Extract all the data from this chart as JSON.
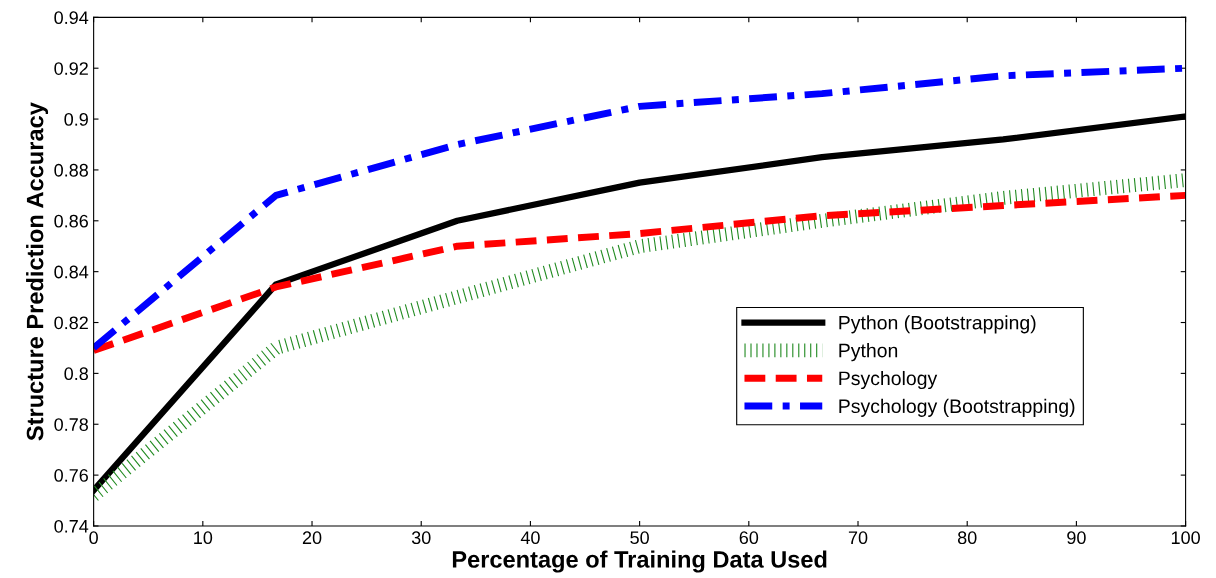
{
  "chart_data": {
    "type": "line",
    "xlabel": "Percentage of Training Data Used",
    "ylabel": "Structure Prediction Accuracy",
    "x": [
      0,
      16.7,
      33.3,
      50,
      66.7,
      83.3,
      100
    ],
    "series": [
      {
        "name": "Python (Bootstrapping)",
        "color": "#000000",
        "line_style": "solid",
        "values": [
          0.754,
          0.835,
          0.86,
          0.875,
          0.885,
          0.892,
          0.901
        ]
      },
      {
        "name": "Python",
        "color": "#228b22",
        "line_style": "dotted",
        "values": [
          0.752,
          0.81,
          0.83,
          0.85,
          0.86,
          0.869,
          0.876
        ]
      },
      {
        "name": "Psychology",
        "color": "#ff0000",
        "line_style": "dashed",
        "values": [
          0.809,
          0.834,
          0.85,
          0.855,
          0.862,
          0.866,
          0.87
        ]
      },
      {
        "name": "Psychology (Bootstrapping)",
        "color": "#0000ff",
        "line_style": "dashdot",
        "values": [
          0.81,
          0.87,
          0.89,
          0.905,
          0.91,
          0.917,
          0.92
        ]
      }
    ],
    "xlim": [
      0,
      100
    ],
    "xticks": [
      0,
      10,
      20,
      30,
      40,
      50,
      60,
      70,
      80,
      90,
      100
    ],
    "ylim": [
      0.74,
      0.94
    ],
    "yticks": [
      0.74,
      0.76,
      0.78,
      0.8,
      0.82,
      0.84,
      0.86,
      0.88,
      0.9,
      0.92,
      0.94
    ],
    "grid": false,
    "legend": "right",
    "marker": "none"
  }
}
